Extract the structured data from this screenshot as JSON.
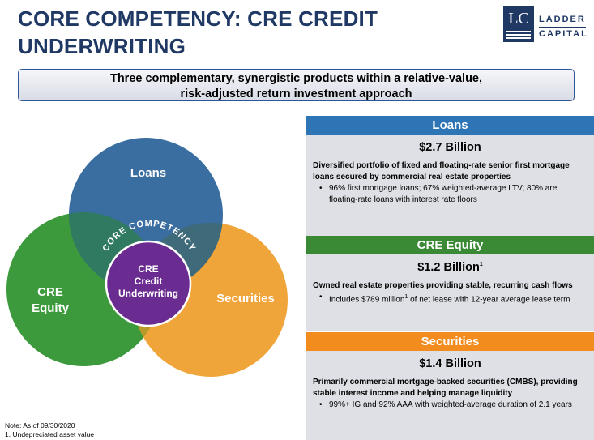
{
  "title": {
    "line1": "CORE COMPETENCY: CRE CREDIT",
    "line2": "UNDERWRITING"
  },
  "logo": {
    "monogram": "LC",
    "word1": "LADDER",
    "word2": "CAPITAL"
  },
  "banner": {
    "line1": "Three complementary, synergistic products within a relative-value,",
    "line2": "risk-adjusted return investment approach"
  },
  "venn": {
    "loans": "Loans",
    "equity_line1": "CRE",
    "equity_line2": "Equity",
    "securities": "Securities",
    "arc_text": "CORE COMPETENCY",
    "center_line1": "CRE",
    "center_line2": "Credit",
    "center_line3": "Underwriting",
    "colors": {
      "loans": "#3b6ea0",
      "equity": "#3c9a3c",
      "securities": "#f0a53a",
      "center": "#6a2c90"
    }
  },
  "panels": {
    "loans": {
      "header": "Loans",
      "color": "#2e75b6",
      "amount": "$2.7 Billion",
      "desc": "Diversified portfolio of fixed and floating-rate senior first mortgage loans secured by commercial real estate properties",
      "bullet": "96% first mortgage loans; 67% weighted-average LTV; 80% are floating-rate loans with interest rate floors"
    },
    "equity": {
      "header": "CRE Equity",
      "color": "#3a8a35",
      "amount": "$1.2 Billion",
      "amount_sup": "1",
      "desc": "Owned real estate properties providing stable, recurring cash flows",
      "bullet_pre": "Includes $789 million",
      "bullet_sup": "1",
      "bullet_post": " of net lease with 12-year average lease term"
    },
    "securities": {
      "header": "Securities",
      "color": "#f28c1e",
      "amount": "$1.4 Billion",
      "desc": "Primarily commercial mortgage-backed securities (CMBS), providing stable interest income and helping manage liquidity",
      "bullet": "99%+ IG and 92% AAA with weighted-average duration of 2.1 years"
    }
  },
  "footnotes": {
    "note": "Note: As of 09/30/2020",
    "one": "1. Undepreciated asset value"
  }
}
